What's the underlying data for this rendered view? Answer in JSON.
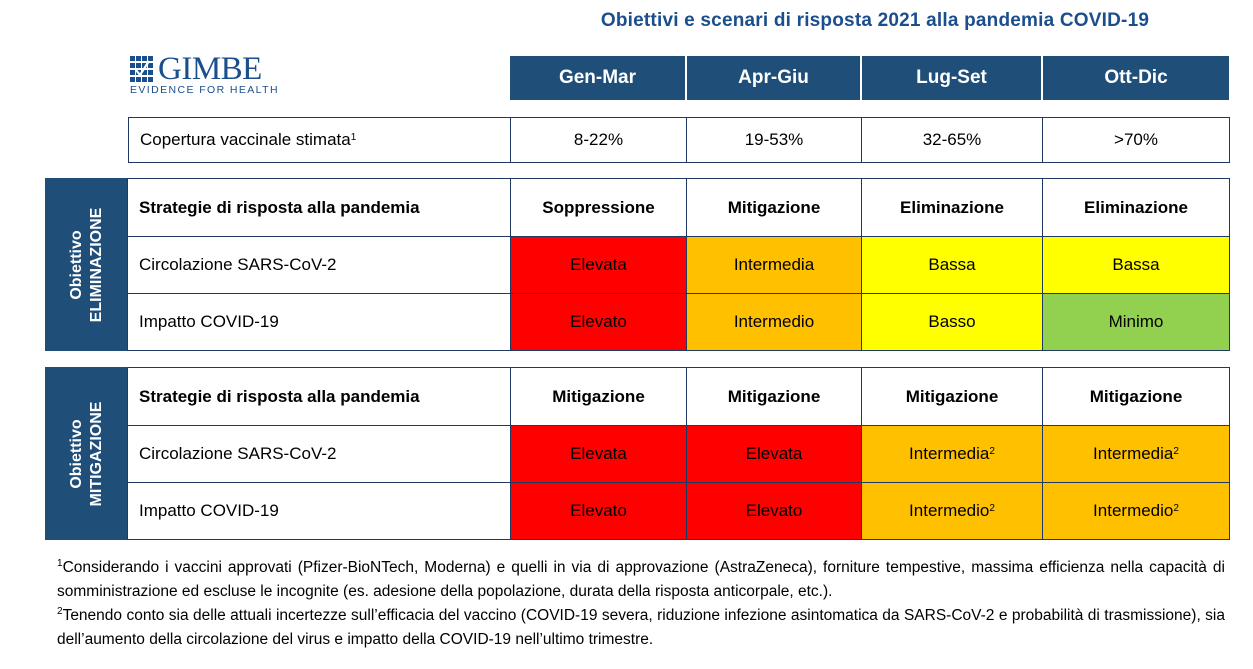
{
  "title": "Obiettivi e scenari di risposta 2021 alla pandemia COVID-19",
  "logo": {
    "word": "GIMBE",
    "tagline": "EVIDENCE FOR HEALTH"
  },
  "colors": {
    "navy": "#1f4e79",
    "red": "#ff0000",
    "orange": "#ffc000",
    "yellow": "#ffff00",
    "green": "#92d050"
  },
  "periods": [
    "Gen-Mar",
    "Apr-Giu",
    "Lug-Set",
    "Ott-Dic"
  ],
  "coverage": {
    "label": "Copertura vaccinale stimata",
    "note": "1",
    "values": [
      "8-22%",
      "19-53%",
      "32-65%",
      ">70%"
    ]
  },
  "elimination": {
    "side_line1": "Obiettivo",
    "side_line2": "ELIMINAZIONE",
    "strategy_label": "Strategie di risposta alla pandemia",
    "strategies": [
      "Soppressione",
      "Mitigazione",
      "Eliminazione",
      "Eliminazione"
    ],
    "circulation_label": "Circolazione SARS-CoV-2",
    "circulation": [
      "Elevata",
      "Intermedia",
      "Bassa",
      "Bassa"
    ],
    "impact_label": "Impatto COVID-19",
    "impact": [
      "Elevato",
      "Intermedio",
      "Basso",
      "Minimo"
    ]
  },
  "mitigation": {
    "side_line1": "Obiettivo",
    "side_line2": "MITIGAZIONE",
    "strategy_label": "Strategie di risposta alla pandemia",
    "strategies": [
      "Mitigazione",
      "Mitigazione",
      "Mitigazione",
      "Mitigazione"
    ],
    "circulation_label": "Circolazione SARS-CoV-2",
    "circulation": [
      "Elevata",
      "Elevata",
      "Intermedia",
      "Intermedia"
    ],
    "circulation_notes": [
      "",
      "",
      "2",
      "2"
    ],
    "impact_label": "Impatto COVID-19",
    "impact": [
      "Elevato",
      "Elevato",
      "Intermedio",
      "Intermedio"
    ],
    "impact_notes": [
      "",
      "",
      "2",
      "2"
    ]
  },
  "footnotes": [
    {
      "mark": "1",
      "text": "Considerando i vaccini approvati (Pfizer-BioNTech, Moderna) e quelli in via di approvazione (AstraZeneca), forniture tempestive, massima efficienza nella capacità di somministrazione ed escluse le incognite (es. adesione della popolazione, durata della risposta anticorpale, etc.)."
    },
    {
      "mark": "2",
      "text": "Tenendo conto sia delle attuali incertezze sull’efficacia del vaccino (COVID-19 severa, riduzione infezione asintomatica da SARS-CoV-2 e probabilità di trasmissione), sia dell’aumento della circolazione del virus e impatto della COVID-19 nell’ultimo trimestre."
    }
  ]
}
